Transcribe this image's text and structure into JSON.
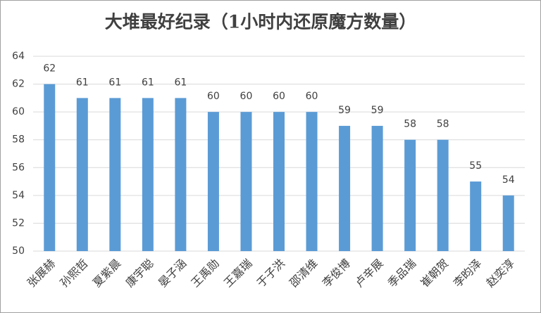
{
  "chart_data": {
    "type": "bar",
    "title": "大堆最好纪录（1小时内还原魔方数量）",
    "categories": [
      "张展赫",
      "孙熙哲",
      "夏紫晨",
      "康宇聪",
      "晏子涵",
      "王禹勋",
      "王嘉瑞",
      "于子洪",
      "邵清维",
      "李俊博",
      "卢辛展",
      "季品瑞",
      "崔朝贺",
      "李昀泽",
      "赵奕淳"
    ],
    "values": [
      62,
      61,
      61,
      61,
      61,
      60,
      60,
      60,
      60,
      59,
      59,
      58,
      58,
      55,
      54
    ],
    "color": "#5b9bd5",
    "ylim": [
      50,
      64
    ],
    "yticks": [
      50,
      52,
      54,
      56,
      58,
      60,
      62,
      64
    ],
    "grid": true
  }
}
